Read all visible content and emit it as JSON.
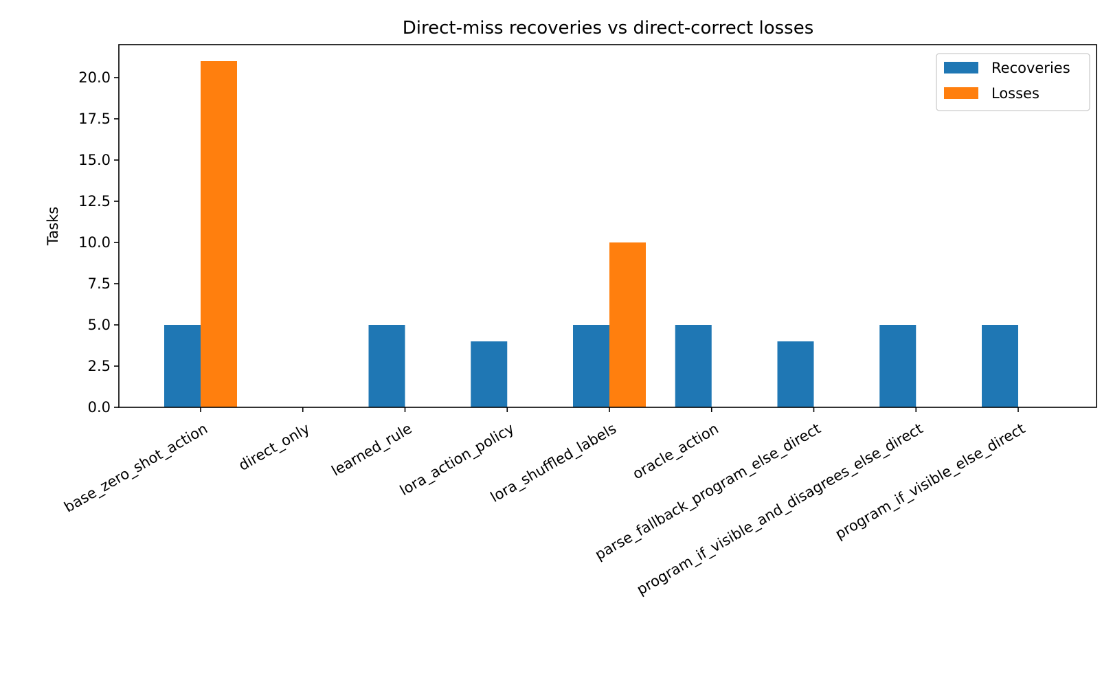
{
  "chart_data": {
    "type": "bar",
    "title": "Direct-miss recoveries vs direct-correct losses",
    "xlabel": "",
    "ylabel": "Tasks",
    "categories": [
      "base_zero_shot_action",
      "direct_only",
      "learned_rule",
      "lora_action_policy",
      "lora_shuffled_labels",
      "oracle_action",
      "parse_fallback_program_else_direct",
      "program_if_visible_and_disagrees_else_direct",
      "program_if_visible_else_direct"
    ],
    "series": [
      {
        "name": "Recoveries",
        "color": "#1f77b4",
        "values": [
          5,
          0,
          5,
          4,
          5,
          5,
          4,
          5,
          5
        ]
      },
      {
        "name": "Losses",
        "color": "#ff7f0e",
        "values": [
          21,
          0,
          0,
          0,
          10,
          0,
          0,
          0,
          0
        ]
      }
    ],
    "ylim": [
      0,
      22
    ],
    "yticks": [
      0,
      2.5,
      5,
      7.5,
      10,
      12.5,
      15,
      17.5,
      20
    ],
    "ytick_labels": [
      "0.0",
      "2.5",
      "5.0",
      "7.5",
      "10.0",
      "12.5",
      "15.0",
      "17.5",
      "20.0"
    ],
    "grid": false,
    "legend_position": "top-right"
  }
}
